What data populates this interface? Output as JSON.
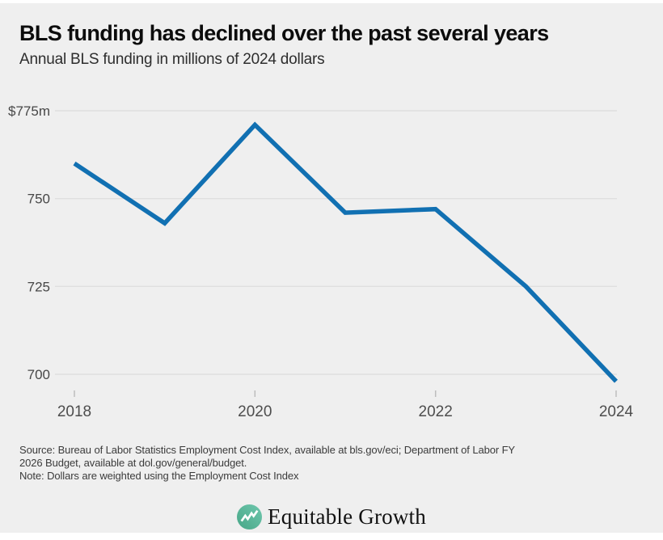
{
  "chart_data": {
    "type": "line",
    "title": "BLS funding has declined over the past several years",
    "subtitle": "Annual BLS funding in millions of 2024 dollars",
    "x": [
      2018,
      2019,
      2020,
      2021,
      2022,
      2023,
      2024
    ],
    "series": [
      {
        "name": "Annual BLS funding, millions of 2024 dollars",
        "values": [
          760,
          743,
          771,
          746,
          747,
          725,
          698
        ]
      }
    ],
    "ylim": [
      693,
      778
    ],
    "yticks": [
      {
        "value": 775,
        "label": "$775m"
      },
      {
        "value": 750,
        "label": "750"
      },
      {
        "value": 725,
        "label": "725"
      },
      {
        "value": 700,
        "label": "700"
      }
    ],
    "xticks": [
      {
        "value": 2018,
        "label": "2018"
      },
      {
        "value": 2020,
        "label": "2020"
      },
      {
        "value": 2022,
        "label": "2022"
      },
      {
        "value": 2024,
        "label": "2024"
      }
    ],
    "grid": "horizontal-only",
    "legend": "none",
    "line_color": "#1170b2"
  },
  "footer": {
    "source_lines": [
      "Source: Bureau of Labor Statistics Employment Cost Index, available at bls.gov/eci; Department of Labor FY",
      "2026 Budget, available at dol.gov/general/budget."
    ],
    "note": "Note: Dollars are weighted using the Employment Cost Index",
    "logo_text": "Equitable Growth"
  },
  "colors": {
    "background": "#efefef",
    "gridline": "#dfdfdf",
    "line": "#1170b2",
    "tick_label": "#4d4d4d",
    "logo_teal_light": "#6fc7ad",
    "logo_teal_dark": "#47a687"
  }
}
